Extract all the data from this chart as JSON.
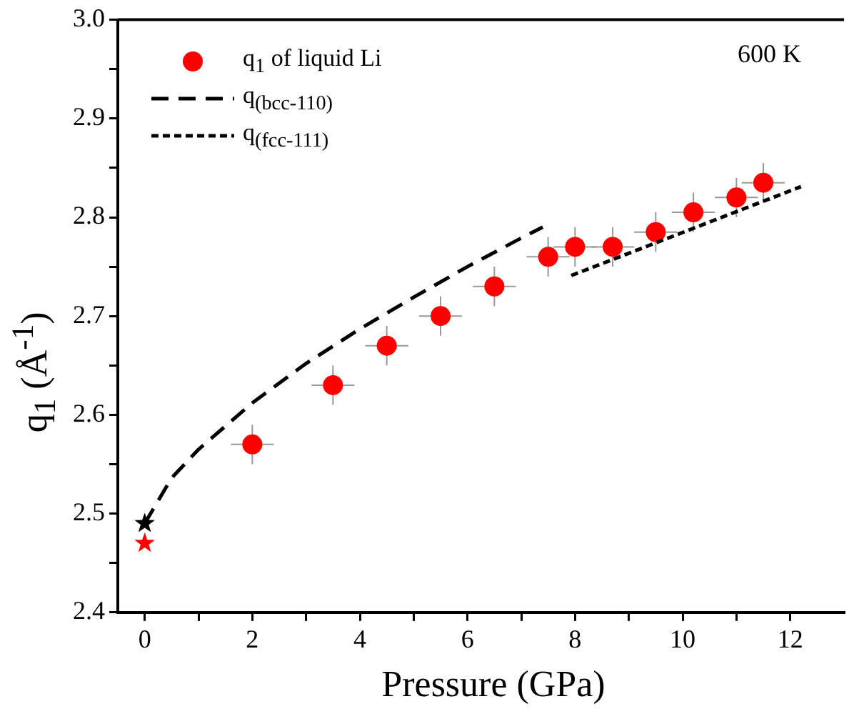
{
  "chart_data": {
    "type": "scatter",
    "xlabel": "Pressure (GPa)",
    "ylabel": "q$_{1}$ (Å$^{-1}$)",
    "xlim": [
      -0.5,
      13
    ],
    "ylim": [
      2.4,
      3.0
    ],
    "xticks": [
      0,
      {
        "value": 1,
        "label": null
      },
      2,
      {
        "value": 3,
        "label": null
      },
      4,
      {
        "value": 5,
        "label": null
      },
      6,
      {
        "value": 7,
        "label": null
      },
      8,
      {
        "value": 9,
        "label": null
      },
      10,
      {
        "value": 11,
        "label": null
      },
      12
    ],
    "yticks": [
      2.4,
      {
        "value": 2.45,
        "label": null
      },
      2.5,
      {
        "value": 2.55,
        "label": null
      },
      2.6,
      {
        "value": 2.65,
        "label": null
      },
      2.7,
      {
        "value": 2.75,
        "label": null
      },
      2.8,
      {
        "value": 2.85,
        "label": null
      },
      2.9,
      {
        "value": 2.95,
        "label": null
      },
      {
        "value": 3,
        "label": "3.0"
      }
    ],
    "grid": false,
    "legend": "top left",
    "annotations": [
      "600 K"
    ],
    "series": [
      {
        "name": "q$_{1}$ of liquid Li",
        "marker": "circle",
        "color": "#ff0000",
        "x": [
          2,
          3.5,
          4.5,
          5.5,
          6.5,
          7.5,
          8,
          8.7,
          9.5,
          10.2,
          11,
          11.5
        ],
        "values": [
          2.57,
          2.63,
          2.67,
          2.7,
          2.73,
          2.76,
          2.77,
          2.77,
          2.785,
          2.805,
          2.82,
          2.835
        ],
        "errors": [
          0.02,
          0.02,
          0.02,
          0.02,
          0.02,
          0.02,
          0.02,
          0.02,
          0.02,
          0.02,
          0.02,
          0.02
        ],
        "xerrors": [
          0.4,
          0.4,
          0.4,
          0.4,
          0.4,
          0.4,
          0.4,
          0.4,
          0.4,
          0.4,
          0.4,
          0.4
        ]
      },
      {
        "name": "q$_{(bcc-110)}$",
        "type": "line",
        "line_style": "dashed",
        "marker": "none",
        "color": "#000000",
        "x": [
          0,
          0.5,
          1,
          2,
          3,
          4,
          5,
          6,
          7,
          7.4
        ],
        "values": [
          2.49,
          2.536,
          2.565,
          2.612,
          2.652,
          2.687,
          2.719,
          2.75,
          2.779,
          2.79
        ]
      },
      {
        "name": "q$_{(fcc-111)}$",
        "type": "line",
        "line_style": "dotted",
        "marker": "none",
        "color": "#000000",
        "x": [
          7.93,
          12.2
        ],
        "values": [
          2.741,
          2.831
        ]
      },
      {
        "marker": "star",
        "color": "#000000",
        "x": [
          0
        ],
        "values": [
          2.49
        ]
      },
      {
        "marker": "star",
        "color": "#ff0000",
        "x": [
          0
        ],
        "values": [
          2.47
        ]
      }
    ]
  }
}
